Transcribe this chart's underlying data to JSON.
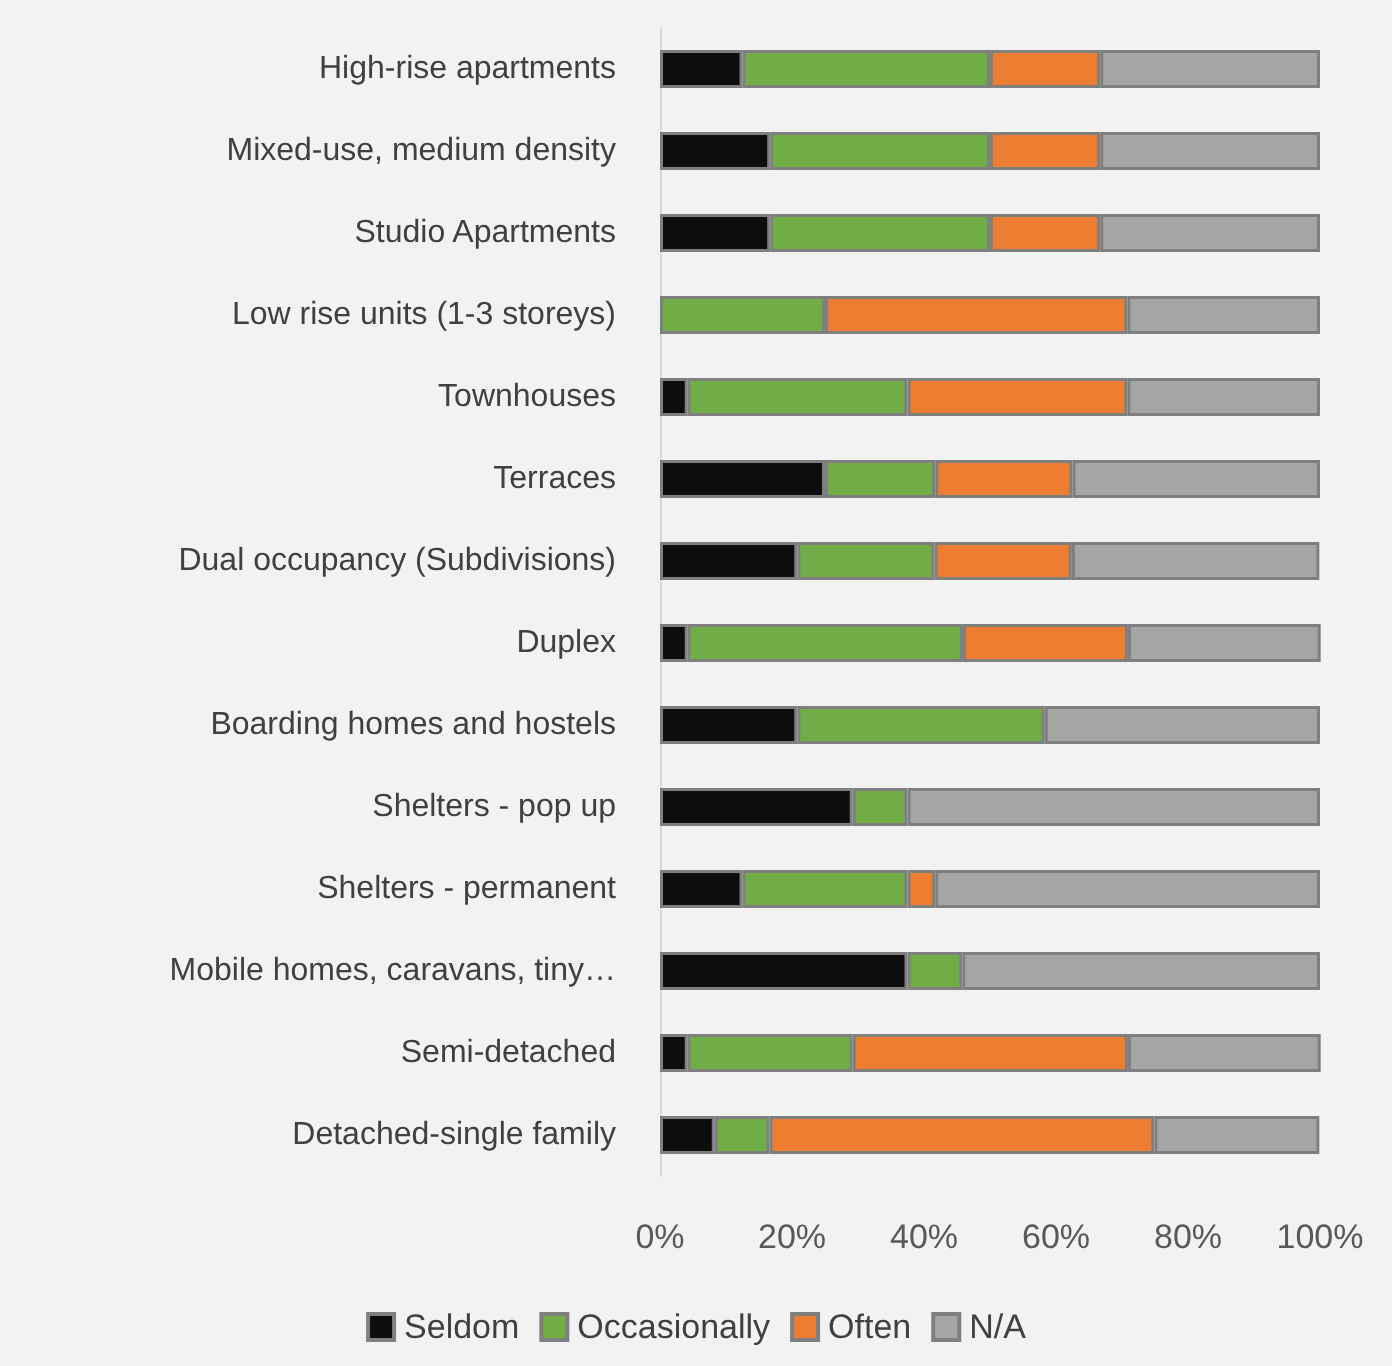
{
  "chart_data": {
    "type": "bar",
    "orientation": "horizontal",
    "stacked": true,
    "categories": [
      "High-rise apartments",
      "Mixed-use, medium density",
      "Studio Apartments",
      "Low rise units (1-3 storeys)",
      "Townhouses",
      "Terraces",
      "Dual occupancy (Subdivisions)",
      "Duplex",
      "Boarding homes and hostels",
      "Shelters - pop up",
      "Shelters - permanent",
      "Mobile homes, caravans, tiny…",
      "Semi-detached",
      "Detached-single family"
    ],
    "series": [
      {
        "name": "Seldom",
        "color": "#0d0d0d",
        "values": [
          12.5,
          16.7,
          16.7,
          0,
          4.2,
          25,
          20.8,
          4.2,
          20.8,
          29.2,
          12.5,
          37.5,
          4.2,
          8.3
        ]
      },
      {
        "name": "Occasionally",
        "color": "#70ad47",
        "values": [
          37.5,
          33.3,
          33.3,
          25,
          33.3,
          16.7,
          20.8,
          41.7,
          37.5,
          8.3,
          25,
          8.3,
          25,
          8.3
        ]
      },
      {
        "name": "Often",
        "color": "#ed7d31",
        "values": [
          16.7,
          16.7,
          16.7,
          45.8,
          33.3,
          20.8,
          20.8,
          25,
          0,
          0,
          4.2,
          0,
          41.7,
          58.3
        ]
      },
      {
        "name": "N/A",
        "color": "#a5a5a5",
        "values": [
          33.3,
          33.3,
          33.3,
          29.2,
          29.2,
          37.5,
          37.5,
          29.2,
          41.7,
          62.5,
          58.3,
          54.2,
          29.2,
          25
        ]
      }
    ],
    "xlim": [
      0,
      100
    ],
    "xticks": [
      {
        "value": 0,
        "label": "0%"
      },
      {
        "value": 20,
        "label": "20%"
      },
      {
        "value": 40,
        "label": "40%"
      },
      {
        "value": 60,
        "label": "60%"
      },
      {
        "value": 80,
        "label": "80%"
      },
      {
        "value": 100,
        "label": "100%"
      }
    ],
    "grid": false,
    "legend": "bottom"
  }
}
